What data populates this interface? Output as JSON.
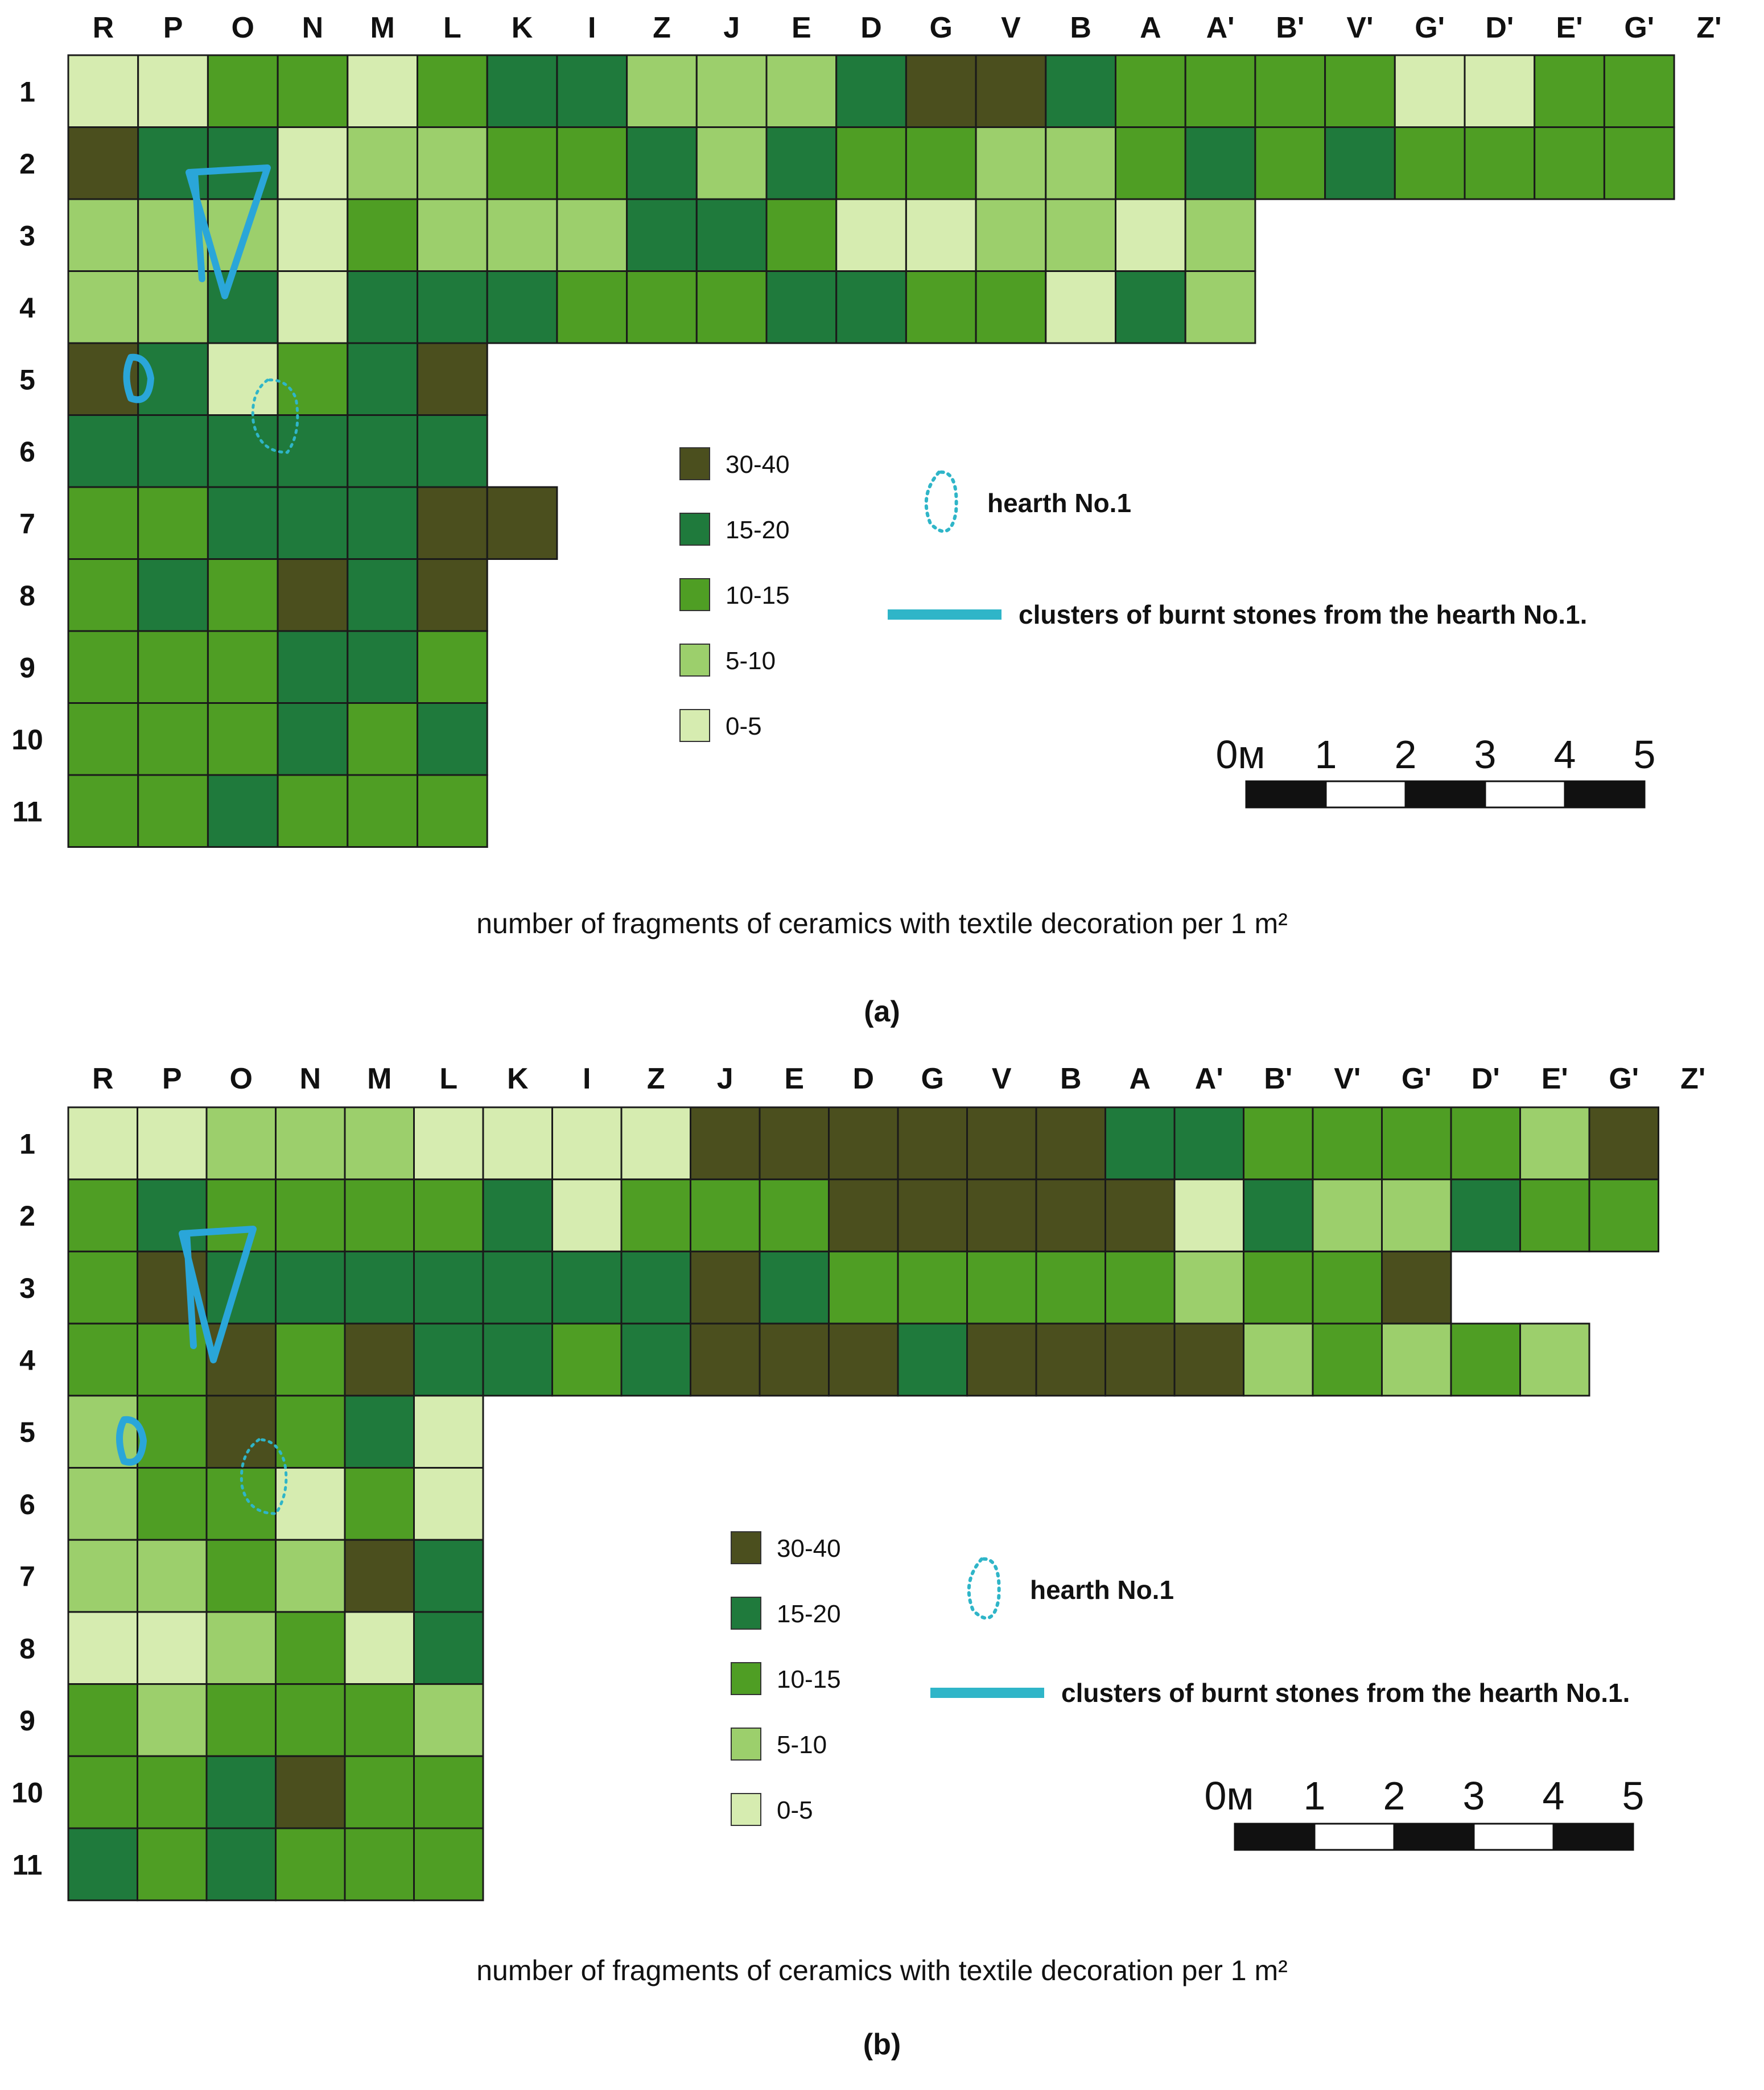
{
  "grid": {
    "columns": [
      "R",
      "P",
      "O",
      "N",
      "M",
      "L",
      "K",
      "I",
      "Z",
      "J",
      "E",
      "D",
      "G",
      "V",
      "B",
      "A",
      "A'",
      "B'",
      "V'",
      "G'",
      "D'",
      "E'",
      "G'",
      "Z'"
    ],
    "rows": [
      "1",
      "2",
      "3",
      "4",
      "5",
      "6",
      "7",
      "8",
      "9",
      "10",
      "11"
    ]
  },
  "legend": {
    "classes": [
      {
        "label": "30-40",
        "color": "#4b4f1e"
      },
      {
        "label": "15-20",
        "color": "#1f7a3c"
      },
      {
        "label": "10-15",
        "color": "#4f9e24"
      },
      {
        "label": "5-10",
        "color": "#9ccf6c"
      },
      {
        "label": "0-5",
        "color": "#d6ecb0"
      }
    ],
    "hearth_label": "hearth  No.1",
    "stones_label": "clusters of burnt stones from the hearth No.1.",
    "hearth_color": "#2fb5c8",
    "stones_color": "#2aa6d9"
  },
  "scale_bar": {
    "labels": [
      "0м",
      "1",
      "2",
      "3",
      "4",
      "5"
    ]
  },
  "panels": [
    {
      "caption": "number of fragments of ceramics with textile decoration per 1 m²",
      "tag": "(a)",
      "cells": [
        "44224211333100122224422",
        "01143322131223321212222",
        "33342333112443343",
        "33141112221122413",
        "014210",
        "111111",
        "2211100",
        "212010",
        "222112",
        "222121",
        "221222"
      ],
      "hearth_line_map": 3
    },
    {
      "caption": "number of fragments of ceramics with textile decoration per 1 m²",
      "tag": "(b)",
      "cells": [
        "44333444400000011222230",
        "21222214222000004133122",
        "20111111101222223220",
        "2202011210001000032323",
        "320214",
        "322424",
        "332301",
        "443241",
        "232223",
        "221022",
        "121222"
      ],
      "hearth_line_map": 3
    }
  ]
}
